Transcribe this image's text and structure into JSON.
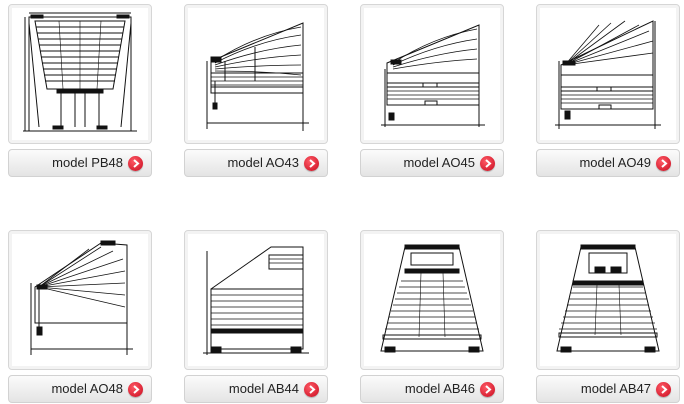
{
  "products": [
    {
      "label": "model PB48",
      "icon": "pb48-blind-diagram"
    },
    {
      "label": "model AO43",
      "icon": "ao43-blind-diagram"
    },
    {
      "label": "model AO45",
      "icon": "ao45-blind-diagram"
    },
    {
      "label": "model AO49",
      "icon": "ao49-blind-diagram"
    },
    {
      "label": "model AO48",
      "icon": "ao48-blind-diagram"
    },
    {
      "label": "model AB44",
      "icon": "ab44-blind-diagram"
    },
    {
      "label": "model AB46",
      "icon": "ab46-blind-diagram"
    },
    {
      "label": "model AB47",
      "icon": "ab47-blind-diagram"
    }
  ],
  "colors": {
    "accent": "#d21428",
    "line": "#111111"
  }
}
